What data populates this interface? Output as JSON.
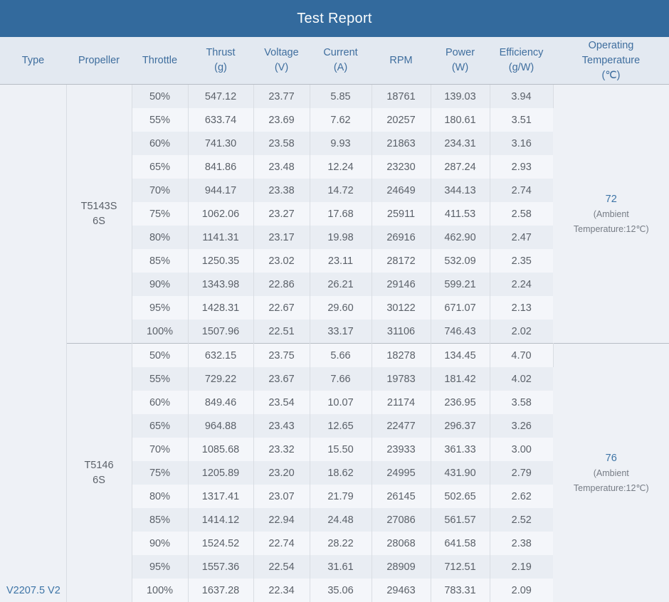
{
  "title": "Test Report",
  "colors": {
    "title_bar_bg": "#336a9d",
    "title_text": "#fbfdfe",
    "header_bg": "#e3e9f1",
    "header_text": "#3f6e9e",
    "row_stripe_dark": "#e9edf3",
    "row_stripe_light": "#f4f6fa",
    "merged_cell_bg": "#eef1f6",
    "data_text": "#5b6169",
    "accent_blue": "#3d74a6",
    "section_border": "#b7bdc5"
  },
  "table": {
    "type_label": "V2207.5 V2",
    "columns": [
      {
        "id": "type",
        "lines": [
          "Type"
        ]
      },
      {
        "id": "propeller",
        "lines": [
          "Propeller"
        ]
      },
      {
        "id": "throttle",
        "lines": [
          "Throttle"
        ]
      },
      {
        "id": "thrust-g",
        "lines": [
          "Thrust",
          "(g)"
        ]
      },
      {
        "id": "voltage-v",
        "lines": [
          "Voltage",
          "(V)"
        ]
      },
      {
        "id": "current-a",
        "lines": [
          "Current",
          "(A)"
        ]
      },
      {
        "id": "rpm",
        "lines": [
          "RPM"
        ]
      },
      {
        "id": "power-w",
        "lines": [
          "Power",
          "(W)"
        ]
      },
      {
        "id": "efficiency-g-w",
        "lines": [
          "Efficiency",
          "(g/W)"
        ]
      },
      {
        "id": "operating-temperature",
        "lines": [
          "Operating",
          "Temperature",
          "(℃)"
        ]
      }
    ]
  },
  "sections": [
    {
      "propeller_lines": [
        "T5143S",
        "6S"
      ],
      "temperature": {
        "value": "72",
        "note_lines": [
          "(Ambient",
          "Temperature:12℃)"
        ]
      },
      "rows": [
        [
          "50%",
          "547.12",
          "23.77",
          "5.85",
          "18761",
          "139.03",
          "3.94"
        ],
        [
          "55%",
          "633.74",
          "23.69",
          "7.62",
          "20257",
          "180.61",
          "3.51"
        ],
        [
          "60%",
          "741.30",
          "23.58",
          "9.93",
          "21863",
          "234.31",
          "3.16"
        ],
        [
          "65%",
          "841.86",
          "23.48",
          "12.24",
          "23230",
          "287.24",
          "2.93"
        ],
        [
          "70%",
          "944.17",
          "23.38",
          "14.72",
          "24649",
          "344.13",
          "2.74"
        ],
        [
          "75%",
          "1062.06",
          "23.27",
          "17.68",
          "25911",
          "411.53",
          "2.58"
        ],
        [
          "80%",
          "1141.31",
          "23.17",
          "19.98",
          "26916",
          "462.90",
          "2.47"
        ],
        [
          "85%",
          "1250.35",
          "23.02",
          "23.11",
          "28172",
          "532.09",
          "2.35"
        ],
        [
          "90%",
          "1343.98",
          "22.86",
          "26.21",
          "29146",
          "599.21",
          "2.24"
        ],
        [
          "95%",
          "1428.31",
          "22.67",
          "29.60",
          "30122",
          "671.07",
          "2.13"
        ],
        [
          "100%",
          "1507.96",
          "22.51",
          "33.17",
          "31106",
          "746.43",
          "2.02"
        ]
      ]
    },
    {
      "propeller_lines": [
        "T5146",
        "6S"
      ],
      "temperature": {
        "value": "76",
        "note_lines": [
          "(Ambient",
          "Temperature:12℃)"
        ]
      },
      "rows": [
        [
          "50%",
          "632.15",
          "23.75",
          "5.66",
          "18278",
          "134.45",
          "4.70"
        ],
        [
          "55%",
          "729.22",
          "23.67",
          "7.66",
          "19783",
          "181.42",
          "4.02"
        ],
        [
          "60%",
          "849.46",
          "23.54",
          "10.07",
          "21174",
          "236.95",
          "3.58"
        ],
        [
          "65%",
          "964.88",
          "23.43",
          "12.65",
          "22477",
          "296.37",
          "3.26"
        ],
        [
          "70%",
          "1085.68",
          "23.32",
          "15.50",
          "23933",
          "361.33",
          "3.00"
        ],
        [
          "75%",
          "1205.89",
          "23.20",
          "18.62",
          "24995",
          "431.90",
          "2.79"
        ],
        [
          "80%",
          "1317.41",
          "23.07",
          "21.79",
          "26145",
          "502.65",
          "2.62"
        ],
        [
          "85%",
          "1414.12",
          "22.94",
          "24.48",
          "27086",
          "561.57",
          "2.52"
        ],
        [
          "90%",
          "1524.52",
          "22.74",
          "28.22",
          "28068",
          "641.58",
          "2.38"
        ],
        [
          "95%",
          "1557.36",
          "22.54",
          "31.61",
          "28909",
          "712.51",
          "2.19"
        ],
        [
          "100%",
          "1637.28",
          "22.34",
          "35.06",
          "29463",
          "783.31",
          "2.09"
        ]
      ]
    }
  ]
}
